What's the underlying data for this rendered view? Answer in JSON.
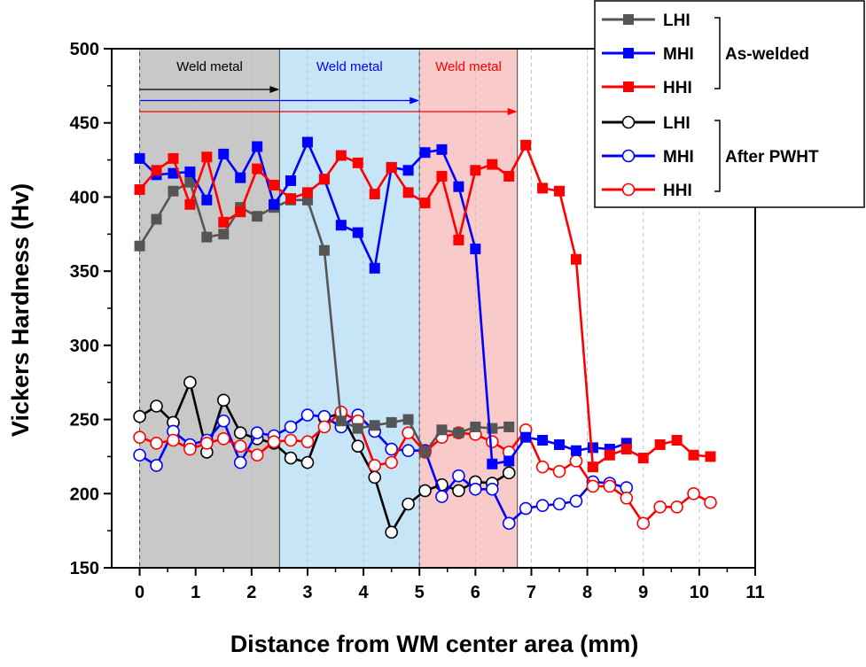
{
  "chart_data": {
    "type": "line",
    "xlabel": "Distance from WM center area (mm)",
    "ylabel": "Vickers Hardness (Hv)",
    "xlim": [
      -0.5,
      11
    ],
    "ylim": [
      150,
      500
    ],
    "xticks": [
      0,
      1,
      2,
      3,
      4,
      5,
      6,
      7,
      8,
      9,
      10,
      11
    ],
    "yticks": [
      150,
      200,
      250,
      300,
      350,
      400,
      450,
      500
    ],
    "grid": "vertical dashed",
    "regions": [
      {
        "label": "Weld metal",
        "x0": 0,
        "x1": 2.5,
        "fill": "#c8c8c8",
        "color": "#000000",
        "arrow_end": 2.5
      },
      {
        "label": "Weld metal",
        "x0": 2.5,
        "x1": 5.0,
        "fill": "#c6e6f8",
        "color": "#0000ff",
        "arrow_end": 5.0
      },
      {
        "label": "Weld metal",
        "x0": 5.0,
        "x1": 6.75,
        "fill": "#f8caca",
        "color": "#ff0000",
        "arrow_end": 6.75
      }
    ],
    "groups": [
      {
        "label": "As-welded",
        "series": [
          0,
          1,
          2
        ]
      },
      {
        "label": "After PWHT",
        "series": [
          3,
          4,
          5
        ]
      }
    ],
    "series": [
      {
        "name": "LHI",
        "group": "As-welded",
        "color": "#555555",
        "marker": "filled-square",
        "x": [
          0,
          0.3,
          0.6,
          0.9,
          1.2,
          1.5,
          1.8,
          2.1,
          2.4,
          2.7,
          3.0,
          3.3,
          3.6,
          3.9,
          4.2,
          4.5,
          4.8,
          5.1,
          5.4,
          5.7,
          6.0,
          6.3,
          6.6
        ],
        "y": [
          367,
          385,
          404,
          410,
          373,
          375,
          393,
          387,
          393,
          398,
          398,
          364,
          249,
          244,
          246,
          248,
          250,
          228,
          243,
          241,
          245,
          244,
          245
        ]
      },
      {
        "name": "MHI",
        "group": "As-welded",
        "color": "#0000ff",
        "marker": "filled-square",
        "x": [
          0,
          0.3,
          0.6,
          0.9,
          1.2,
          1.5,
          1.8,
          2.1,
          2.4,
          2.7,
          3.0,
          3.3,
          3.6,
          3.9,
          4.2,
          4.5,
          4.8,
          5.1,
          5.4,
          5.7,
          6.0,
          6.3,
          6.6,
          6.9,
          7.2,
          7.5,
          7.8,
          8.1,
          8.4,
          8.7
        ],
        "y": [
          426,
          415,
          416,
          417,
          398,
          429,
          413,
          434,
          395,
          411,
          437,
          412,
          381,
          376,
          352,
          420,
          418,
          430,
          432,
          407,
          365,
          220,
          222,
          238,
          236,
          233,
          229,
          231,
          230,
          234
        ]
      },
      {
        "name": "HHI",
        "group": "As-welded",
        "color": "#ff0000",
        "marker": "filled-square",
        "x": [
          0,
          0.3,
          0.6,
          0.9,
          1.2,
          1.5,
          1.8,
          2.1,
          2.4,
          2.7,
          3.0,
          3.3,
          3.6,
          3.9,
          4.2,
          4.5,
          4.8,
          5.1,
          5.4,
          5.7,
          6.0,
          6.3,
          6.6,
          6.9,
          7.2,
          7.5,
          7.8,
          8.1,
          8.4,
          8.7,
          9.0,
          9.3,
          9.6,
          9.9,
          10.2
        ],
        "y": [
          405,
          418,
          426,
          395,
          427,
          383,
          390,
          419,
          408,
          399,
          403,
          412,
          428,
          423,
          402,
          420,
          403,
          396,
          414,
          371,
          418,
          422,
          414,
          435,
          406,
          404,
          358,
          218,
          226,
          230,
          224,
          233,
          236,
          226,
          225
        ]
      },
      {
        "name": "LHI",
        "group": "After PWHT",
        "color": "#000000",
        "marker": "open-circle",
        "x": [
          0,
          0.3,
          0.6,
          0.9,
          1.2,
          1.5,
          1.8,
          2.1,
          2.4,
          2.7,
          3.0,
          3.3,
          3.6,
          3.9,
          4.2,
          4.5,
          4.8,
          5.1,
          5.4,
          5.7,
          6.0,
          6.3,
          6.6
        ],
        "y": [
          252,
          259,
          248,
          275,
          228,
          263,
          241,
          237,
          234,
          224,
          221,
          251,
          254,
          232,
          211,
          174,
          193,
          202,
          206,
          202,
          208,
          207,
          214
        ]
      },
      {
        "name": "MHI",
        "group": "After PWHT",
        "color": "#0000ff",
        "marker": "open-circle",
        "x": [
          0,
          0.3,
          0.6,
          0.9,
          1.2,
          1.5,
          1.8,
          2.1,
          2.4,
          2.7,
          3.0,
          3.3,
          3.6,
          3.9,
          4.2,
          4.5,
          4.8,
          5.1,
          5.4,
          5.7,
          6.0,
          6.3,
          6.6,
          6.9,
          7.2,
          7.5,
          7.8,
          8.1,
          8.4,
          8.7
        ],
        "y": [
          226,
          219,
          242,
          233,
          236,
          249,
          221,
          241,
          239,
          245,
          253,
          252,
          245,
          253,
          242,
          230,
          229,
          229,
          198,
          212,
          203,
          203,
          180,
          190,
          192,
          193,
          195,
          208,
          207,
          204
        ]
      },
      {
        "name": "HHI",
        "group": "After PWHT",
        "color": "#ff0000",
        "marker": "open-circle",
        "x": [
          0,
          0.3,
          0.6,
          0.9,
          1.2,
          1.5,
          1.8,
          2.1,
          2.4,
          2.7,
          3.0,
          3.3,
          3.6,
          3.9,
          4.2,
          4.5,
          4.8,
          5.1,
          5.4,
          5.7,
          6.0,
          6.3,
          6.6,
          6.9,
          7.2,
          7.5,
          7.8,
          8.1,
          8.4,
          8.7,
          9.0,
          9.3,
          9.6,
          9.9,
          10.2
        ],
        "y": [
          238,
          234,
          236,
          230,
          234,
          237,
          232,
          226,
          235,
          236,
          235,
          245,
          255,
          249,
          219,
          221,
          241,
          228,
          238,
          241,
          240,
          235,
          228,
          243,
          218,
          215,
          222,
          205,
          205,
          197,
          180,
          191,
          191,
          200,
          194
        ]
      }
    ]
  }
}
